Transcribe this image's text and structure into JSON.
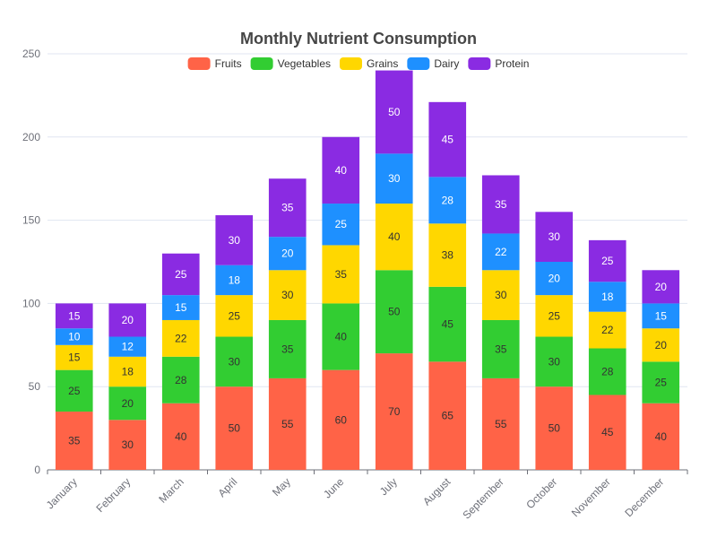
{
  "chart_data": {
    "type": "bar",
    "stacked": true,
    "title": "Monthly Nutrient Consumption",
    "categories": [
      "January",
      "February",
      "March",
      "April",
      "May",
      "June",
      "July",
      "August",
      "September",
      "October",
      "November",
      "December"
    ],
    "series": [
      {
        "name": "Fruits",
        "color": "#FF6347",
        "label_color": "#333333",
        "values": [
          35,
          30,
          40,
          50,
          55,
          60,
          70,
          65,
          55,
          50,
          45,
          40
        ]
      },
      {
        "name": "Vegetables",
        "color": "#32CD32",
        "label_color": "#333333",
        "values": [
          25,
          20,
          28,
          30,
          35,
          40,
          50,
          45,
          35,
          30,
          28,
          25
        ]
      },
      {
        "name": "Grains",
        "color": "#FFD700",
        "label_color": "#333333",
        "values": [
          15,
          18,
          22,
          25,
          30,
          35,
          40,
          38,
          30,
          25,
          22,
          20
        ]
      },
      {
        "name": "Dairy",
        "color": "#1E90FF",
        "label_color": "#ffffff",
        "values": [
          10,
          12,
          15,
          18,
          20,
          25,
          30,
          28,
          22,
          20,
          18,
          15
        ]
      },
      {
        "name": "Protein",
        "color": "#8A2BE2",
        "label_color": "#ffffff",
        "values": [
          15,
          20,
          25,
          30,
          35,
          40,
          50,
          45,
          35,
          30,
          25,
          20
        ]
      }
    ],
    "ylim": [
      0,
      250
    ],
    "yticks": [
      0,
      50,
      100,
      150,
      200,
      250
    ],
    "xlabel": "",
    "ylabel": "",
    "grid": true,
    "legend_position": "top-center"
  }
}
